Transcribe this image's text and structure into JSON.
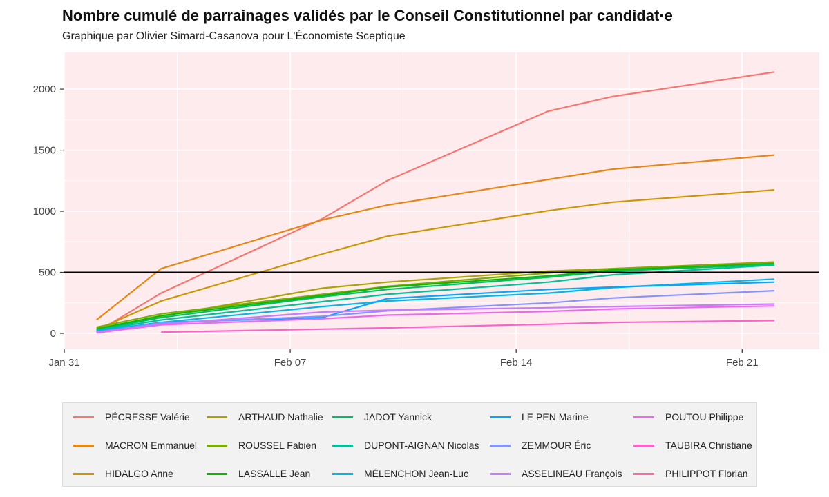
{
  "title": "Nombre cumulé de parrainages validés par le Conseil Constitutionnel par candidat·e",
  "subtitle": "Graphique par Olivier Simard-Casanova pour L'Économiste Sceptique",
  "chart_data": {
    "type": "line",
    "title": "Nombre cumulé de parrainages validés par le Conseil Constitutionnel par candidat·e",
    "subtitle": "Graphique par Olivier Simard-Casanova pour L'Économiste Sceptique",
    "x": [
      "2022-02-01",
      "2022-02-03",
      "2022-02-08",
      "2022-02-10",
      "2022-02-15",
      "2022-02-17",
      "2022-02-22"
    ],
    "x_ticks": [
      "Jan 31",
      "Feb 07",
      "Feb 14",
      "Feb 21"
    ],
    "xlim": [
      "2022-01-31",
      "2022-02-22"
    ],
    "ylim": [
      -130,
      2300
    ],
    "y_ticks": [
      0,
      500,
      1000,
      1500,
      2000
    ],
    "reference_line": 500,
    "grid": true,
    "legend_position": "bottom",
    "series": [
      {
        "name": "PÉCRESSE Valérie",
        "color": "#F8766D",
        "values": [
          10,
          330,
          940,
          1250,
          1820,
          1940,
          2140
        ]
      },
      {
        "name": "MACRON Emmanuel",
        "color": "#E68613",
        "values": [
          110,
          530,
          930,
          1050,
          1260,
          1345,
          1460
        ]
      },
      {
        "name": "HIDALGO Anne",
        "color": "#CD9600",
        "values": [
          30,
          265,
          650,
          795,
          1005,
          1075,
          1175
        ]
      },
      {
        "name": "ARTHAUD Nathalie",
        "color": "#ABA300",
        "values": [
          40,
          140,
          370,
          420,
          510,
          530,
          585
        ]
      },
      {
        "name": "ROUSSEL Fabien",
        "color": "#7CAE00",
        "values": [
          50,
          160,
          320,
          385,
          495,
          530,
          580
        ]
      },
      {
        "name": "LASSALLE Jean",
        "color": "#0CB702",
        "values": [
          35,
          145,
          310,
          380,
          470,
          520,
          570
        ]
      },
      {
        "name": "JADOT Yannick",
        "color": "#00BE67",
        "values": [
          30,
          130,
          300,
          360,
          460,
          510,
          565
        ]
      },
      {
        "name": "DUPONT-AIGNAN Nicolas",
        "color": "#00C19A",
        "values": [
          25,
          110,
          260,
          320,
          420,
          480,
          560
        ]
      },
      {
        "name": "MÉLENCHON Jean-Luc",
        "color": "#00B8E7",
        "values": [
          20,
          90,
          220,
          265,
          330,
          375,
          445
        ]
      },
      {
        "name": "LE PEN Marine",
        "color": "#00A9FF",
        "values": [
          15,
          90,
          130,
          285,
          360,
          380,
          420
        ]
      },
      {
        "name": "ZEMMOUR Éric",
        "color": "#8494FF",
        "values": [
          10,
          85,
          140,
          185,
          250,
          290,
          350
        ]
      },
      {
        "name": "ASSELINEAU François",
        "color": "#C77CFF",
        "values": [
          10,
          75,
          175,
          190,
          210,
          220,
          240
        ]
      },
      {
        "name": "POUTOU Philippe",
        "color": "#ED68ED",
        "values": [
          5,
          70,
          120,
          150,
          180,
          200,
          225
        ]
      },
      {
        "name": "TAUBIRA Christiane",
        "color": "#FF61CC",
        "values": [
          null,
          10,
          35,
          45,
          75,
          90,
          105
        ]
      },
      {
        "name": "PHILIPPOT Florian",
        "color": "#FF68A1",
        "values": [
          null,
          null,
          null,
          null,
          null,
          null,
          null
        ]
      }
    ]
  }
}
